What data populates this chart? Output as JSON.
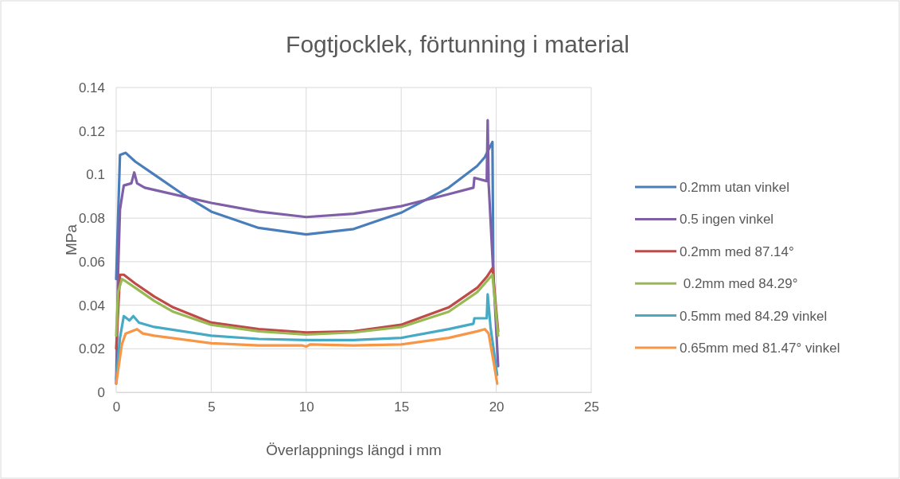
{
  "chart_data": {
    "type": "line",
    "title": "Fogtjocklek, förtunning i material",
    "xlabel": "Överlappnings längd i mm",
    "ylabel": "MPa",
    "xlim": [
      0,
      25
    ],
    "xticks": [
      0,
      5,
      10,
      15,
      20,
      25
    ],
    "ylim": [
      0,
      0.14
    ],
    "yticks": [
      0,
      0.02,
      0.04,
      0.06,
      0.08,
      0.1,
      0.12,
      0.14
    ],
    "grid": true,
    "legend": "right",
    "marker": "none",
    "line_style": "solid",
    "series": [
      {
        "name": "0.2mm utan vinkel",
        "color": "#4a7ebb",
        "x": [
          0,
          0.2,
          0.5,
          1,
          2,
          3.5,
          5,
          7.5,
          10,
          12.5,
          15,
          17.5,
          19,
          19.4,
          19.8,
          19.85
        ],
        "values": [
          0.052,
          0.109,
          0.11,
          0.106,
          0.1,
          0.091,
          0.083,
          0.0755,
          0.0725,
          0.075,
          0.0825,
          0.094,
          0.104,
          0.108,
          0.115,
          0.052
        ]
      },
      {
        "name": "0.5 ingen vinkel",
        "color": "#7f60a8",
        "x": [
          0,
          0.1,
          0.2,
          0.4,
          0.8,
          0.95,
          1.1,
          1.5,
          2,
          5,
          7.5,
          10,
          12.5,
          15,
          17.5,
          18.8,
          18.85,
          19.5,
          19.55,
          19.6,
          20.1
        ],
        "values": [
          0.004,
          0.055,
          0.084,
          0.095,
          0.096,
          0.101,
          0.096,
          0.094,
          0.093,
          0.087,
          0.083,
          0.0805,
          0.082,
          0.0855,
          0.091,
          0.094,
          0.0985,
          0.097,
          0.125,
          0.096,
          0.012
        ]
      },
      {
        "name": "0.2mm med 87.14°",
        "color": "#be4b48",
        "x": [
          0,
          0.2,
          0.4,
          1,
          2,
          3,
          5,
          7.5,
          10,
          12.5,
          15,
          17.5,
          19,
          19.5,
          19.8,
          20.1
        ],
        "values": [
          0.02,
          0.054,
          0.054,
          0.05,
          0.044,
          0.039,
          0.032,
          0.029,
          0.0275,
          0.028,
          0.031,
          0.039,
          0.048,
          0.053,
          0.057,
          0.028
        ]
      },
      {
        "name": " 0.2mm med 84.29°",
        "color": "#98b954",
        "x": [
          0,
          0.1,
          0.3,
          0.5,
          1,
          2,
          3,
          5,
          7.5,
          10,
          12.5,
          15,
          17.5,
          19,
          19.5,
          19.8,
          20.1
        ],
        "values": [
          0.026,
          0.046,
          0.052,
          0.051,
          0.048,
          0.042,
          0.037,
          0.031,
          0.028,
          0.0265,
          0.0275,
          0.03,
          0.037,
          0.046,
          0.051,
          0.054,
          0.026
        ]
      },
      {
        "name": "0.5mm med 84.29 vinkel",
        "color": "#46aac5",
        "x": [
          0,
          0.2,
          0.4,
          0.7,
          0.9,
          1.2,
          2,
          5,
          7.5,
          10,
          12.5,
          15,
          17.5,
          18.8,
          18.85,
          19.5,
          19.55,
          19.7,
          20.05
        ],
        "values": [
          0.006,
          0.025,
          0.035,
          0.033,
          0.035,
          0.032,
          0.03,
          0.026,
          0.0245,
          0.024,
          0.024,
          0.025,
          0.029,
          0.0315,
          0.034,
          0.034,
          0.045,
          0.03,
          0.008
        ]
      },
      {
        "name": "0.65mm med 81.47° vinkel",
        "color": "#f79646",
        "x": [
          0,
          0.3,
          0.5,
          0.8,
          1.1,
          1.4,
          2,
          5,
          7.5,
          9.8,
          10,
          10.2,
          12.5,
          15,
          17.5,
          19,
          19.4,
          19.6,
          19.9,
          20.05
        ],
        "values": [
          0.004,
          0.022,
          0.027,
          0.028,
          0.029,
          0.027,
          0.026,
          0.0225,
          0.0215,
          0.0215,
          0.021,
          0.022,
          0.0215,
          0.022,
          0.025,
          0.028,
          0.029,
          0.027,
          0.012,
          0.004
        ]
      }
    ]
  }
}
